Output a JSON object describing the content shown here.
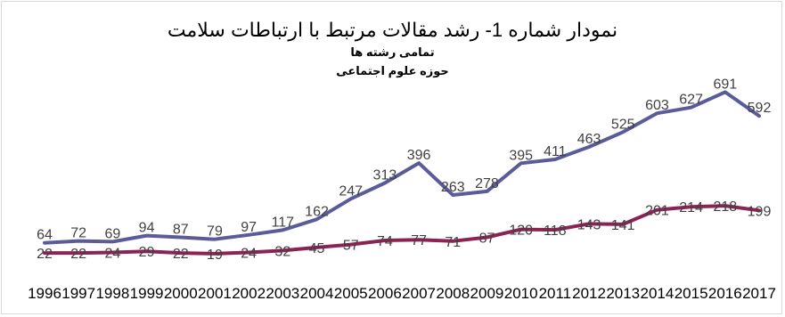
{
  "chart_data": {
    "type": "line",
    "title": "نمودار شماره 1- رشد مقالات مرتبط با ارتباطات سلامت",
    "categories": [
      "1996",
      "1997",
      "1998",
      "1999",
      "2000",
      "2001",
      "2002",
      "2003",
      "2004",
      "2005",
      "2006",
      "2007",
      "2008",
      "2009",
      "2010",
      "2011",
      "2012",
      "2013",
      "2014",
      "2015",
      "2016",
      "2017"
    ],
    "series": [
      {
        "name": "تمامی رشته ها",
        "color": "#5b5b9a",
        "values": [
          64,
          72,
          69,
          94,
          87,
          79,
          97,
          117,
          162,
          247,
          313,
          396,
          263,
          278,
          395,
          411,
          463,
          525,
          603,
          627,
          691,
          592
        ]
      },
      {
        "name": "حوزه علوم اجتماعی",
        "color": "#8b2355",
        "values": [
          22,
          22,
          24,
          29,
          22,
          19,
          24,
          32,
          45,
          57,
          74,
          77,
          71,
          87,
          120,
          118,
          143,
          141,
          201,
          214,
          218,
          199
        ]
      }
    ],
    "legend": "top",
    "grid": false,
    "ylim": [
      0,
      1000
    ]
  }
}
